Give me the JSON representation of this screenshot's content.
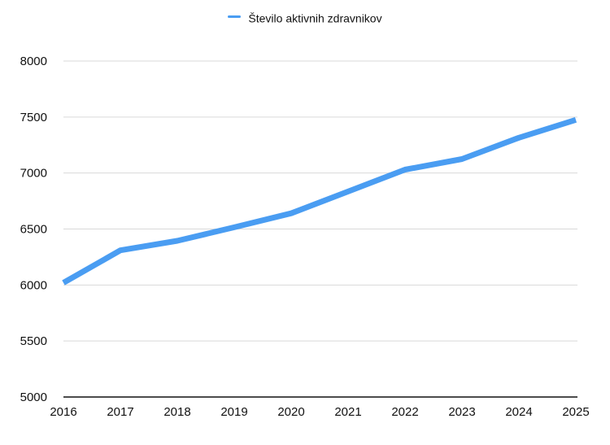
{
  "legend": {
    "label": "Število aktivnih zdravnikov",
    "color": "#4a9df2"
  },
  "chart_data": {
    "type": "line",
    "title": "",
    "xlabel": "",
    "ylabel": "",
    "categories": [
      "2016",
      "2017",
      "2018",
      "2019",
      "2020",
      "2021",
      "2022",
      "2023",
      "2024",
      "2025"
    ],
    "series": [
      {
        "name": "Število aktivnih zdravnikov",
        "color": "#4a9df2",
        "values": [
          6020,
          6310,
          6395,
          6515,
          6640,
          6835,
          7030,
          7125,
          7315,
          7475
        ]
      }
    ],
    "yticks": [
      "5000",
      "5500",
      "6000",
      "6500",
      "7000",
      "7500",
      "8000"
    ],
    "ylim": [
      5000,
      8000
    ],
    "grid": true,
    "legend_position": "top"
  }
}
